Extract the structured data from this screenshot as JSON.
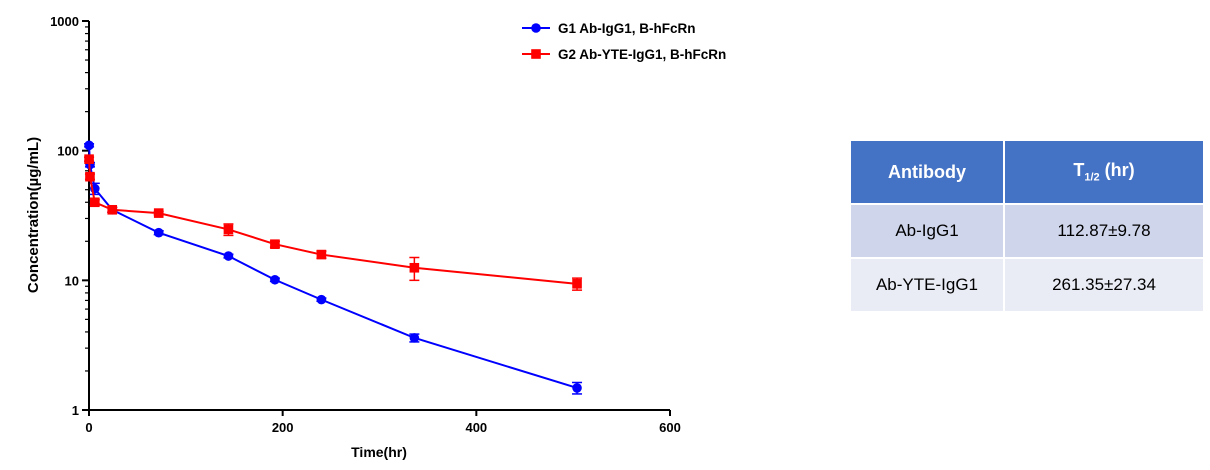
{
  "chart_data": {
    "type": "line",
    "xlabel": "Time(hr)",
    "ylabel": "Concentration(µg/mL)",
    "yscale": "log",
    "xlim": [
      0,
      600
    ],
    "ylim": [
      1,
      1000
    ],
    "x_ticks": [
      0,
      200,
      400,
      600
    ],
    "y_ticks": [
      1,
      10,
      100,
      1000
    ],
    "legend_position": "top-center",
    "series": [
      {
        "name": "G1 Ab-IgG1, B-hFcRn",
        "color": "#0000ff",
        "marker": "circle",
        "x": [
          0.083,
          1,
          6,
          24,
          72,
          144,
          192,
          240,
          336,
          504
        ],
        "y": [
          110,
          78,
          51,
          35,
          23.3,
          15.4,
          10.1,
          7.1,
          3.6,
          1.48
        ],
        "err": [
          3,
          3,
          5,
          1.5,
          0.8,
          0.5,
          0.3,
          0.2,
          0.25,
          0.15
        ]
      },
      {
        "name": "G2 Ab-YTE-IgG1, B-hFcRn",
        "color": "#ff0000",
        "marker": "square",
        "x": [
          0.083,
          1,
          6,
          24,
          72,
          144,
          192,
          240,
          336,
          504
        ],
        "y": [
          86,
          63,
          40,
          35,
          33,
          24.7,
          19,
          15.8,
          12.5,
          9.4
        ],
        "err": [
          3,
          3,
          2,
          1.5,
          1,
          2.5,
          1,
          1,
          2.5,
          1
        ]
      }
    ]
  },
  "table": {
    "headers": {
      "antibody": "Antibody",
      "thalf_main": "T",
      "thalf_sub": "1/2",
      "thalf_unit": " (hr)"
    },
    "rows": [
      {
        "antibody": "Ab-IgG1",
        "thalf": "112.87±9.78"
      },
      {
        "antibody": "Ab-YTE-IgG1",
        "thalf": "261.35±27.34"
      }
    ]
  }
}
